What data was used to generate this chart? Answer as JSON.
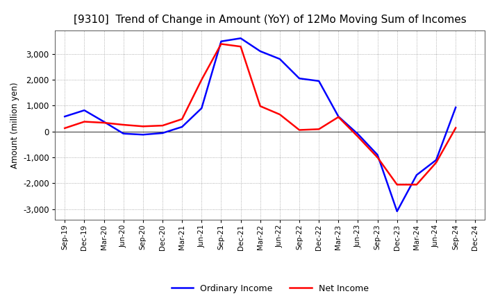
{
  "title": "[9310]  Trend of Change in Amount (YoY) of 12Mo Moving Sum of Incomes",
  "ylabel": "Amount (million yen)",
  "x_labels": [
    "Sep-19",
    "Dec-19",
    "Mar-20",
    "Jun-20",
    "Sep-20",
    "Dec-20",
    "Mar-21",
    "Jun-21",
    "Sep-21",
    "Dec-21",
    "Mar-22",
    "Jun-22",
    "Sep-22",
    "Dec-22",
    "Mar-23",
    "Jun-23",
    "Sep-23",
    "Dec-23",
    "Mar-24",
    "Jun-24",
    "Sep-24",
    "Dec-24"
  ],
  "ordinary_income": [
    580,
    820,
    380,
    -80,
    -120,
    -60,
    180,
    900,
    3480,
    3600,
    3100,
    2800,
    2050,
    1950,
    580,
    -100,
    -900,
    -3080,
    -1680,
    -1100,
    930,
    null
  ],
  "net_income": [
    130,
    380,
    340,
    260,
    200,
    230,
    480,
    2000,
    3380,
    3280,
    980,
    660,
    60,
    90,
    560,
    -200,
    -1000,
    -2050,
    -2050,
    -1200,
    140,
    null
  ],
  "ylim": [
    -3400,
    3900
  ],
  "yticks": [
    -3000,
    -2000,
    -1000,
    0,
    1000,
    2000,
    3000
  ],
  "ordinary_color": "#0000FF",
  "net_color": "#FF0000",
  "bg_color": "#FFFFFF",
  "grid_color": "#999999",
  "title_fontsize": 11,
  "legend_labels": [
    "Ordinary Income",
    "Net Income"
  ]
}
